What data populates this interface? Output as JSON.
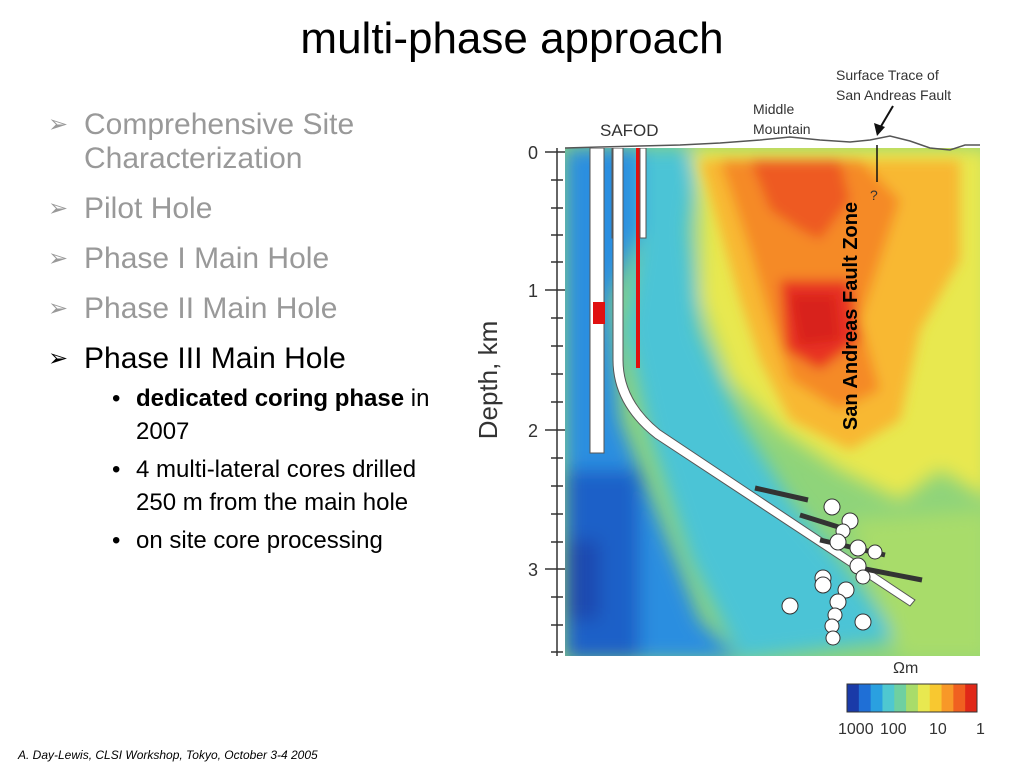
{
  "slide": {
    "title": "multi-phase approach",
    "footer": "A. Day-Lewis, CLSI Workshop, Tokyo, October 3-4 2005"
  },
  "bullets": [
    {
      "text": "Comprehensive Site Characterization",
      "active": false
    },
    {
      "text": "Pilot Hole",
      "active": false
    },
    {
      "text": "Phase I Main Hole",
      "active": false
    },
    {
      "text": "Phase II Main Hole",
      "active": false
    },
    {
      "text": "Phase III Main Hole",
      "active": true
    }
  ],
  "sub_bullets": [
    {
      "bold": "dedicated coring phase",
      "rest": " in 2007"
    },
    {
      "bold": "",
      "rest": "4 multi-lateral cores drilled 250 m from the main hole"
    },
    {
      "bold": "",
      "rest": "on site core processing"
    }
  ],
  "figure": {
    "annotation_surface_trace": [
      "Surface Trace of",
      "San Andreas Fault"
    ],
    "label_middle_mountain": [
      "Middle",
      "Mountain"
    ],
    "label_safod": "SAFOD",
    "label_fault_zone": "San Andreas Fault Zone",
    "question_mark": "?",
    "ylabel": "Depth, km",
    "y_ticks": [
      "0",
      "1",
      "2",
      "3"
    ],
    "colorbar_unit": "Ωm",
    "colorbar_labels": [
      "1000",
      "100",
      "10",
      "1"
    ],
    "colors": {
      "fault_label": "#000000",
      "casing_red": "#e01010",
      "colorbar": [
        "#1a3aa8",
        "#1f6fd6",
        "#2aa0e0",
        "#4fc8d0",
        "#6fd0a0",
        "#a8dc6a",
        "#e8e850",
        "#f8c830",
        "#f89828",
        "#f06020",
        "#e02818"
      ]
    }
  }
}
